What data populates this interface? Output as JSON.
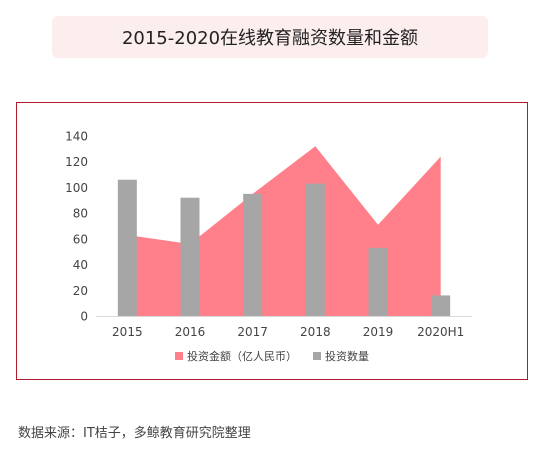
{
  "title": "2015-2020在线教育融资数量和金额",
  "source": "数据来源：IT桔子，多鲸教育研究院整理",
  "colors": {
    "amount": "#ff7f8a",
    "count": "#a6a6a6",
    "frame": "#b01c2e",
    "title_bg": "#fdeeee"
  },
  "chart_data": {
    "type": "bar",
    "title": "2015-2020在线教育融资数量和金额",
    "categories": [
      "2015",
      "2016",
      "2017",
      "2018",
      "2019",
      "2020H1"
    ],
    "yticks": [
      0,
      20,
      40,
      60,
      80,
      100,
      120,
      140
    ],
    "ylim": [
      0,
      140
    ],
    "grid": false,
    "legend_position": "bottom",
    "series": [
      {
        "name": "投资金额（亿人民币）",
        "type": "area",
        "values": [
          63,
          56,
          95,
          132,
          71,
          124
        ]
      },
      {
        "name": "投资数量",
        "type": "bar",
        "values": [
          106,
          92,
          95,
          103,
          53,
          16
        ]
      }
    ]
  }
}
